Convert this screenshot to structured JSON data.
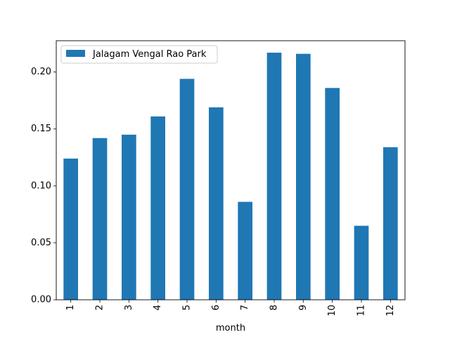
{
  "chart_data": {
    "type": "bar",
    "categories": [
      "1",
      "2",
      "3",
      "4",
      "5",
      "6",
      "7",
      "8",
      "9",
      "10",
      "11",
      "12"
    ],
    "series": [
      {
        "name": "Jalagam Vengal Rao Park",
        "color": "#1f77b4",
        "values": [
          0.124,
          0.142,
          0.145,
          0.161,
          0.194,
          0.169,
          0.086,
          0.217,
          0.216,
          0.186,
          0.065,
          0.134
        ]
      }
    ],
    "title": "",
    "xlabel": "month",
    "ylabel": "",
    "ylim": [
      0,
      0.2275
    ],
    "yticks": [
      0.0,
      0.05,
      0.1,
      0.15,
      0.2
    ],
    "ytick_labels": [
      "0.00",
      "0.05",
      "0.10",
      "0.15",
      "0.20"
    ],
    "xtick_rotation": 90,
    "legend_position": "top-left",
    "grid": false
  }
}
